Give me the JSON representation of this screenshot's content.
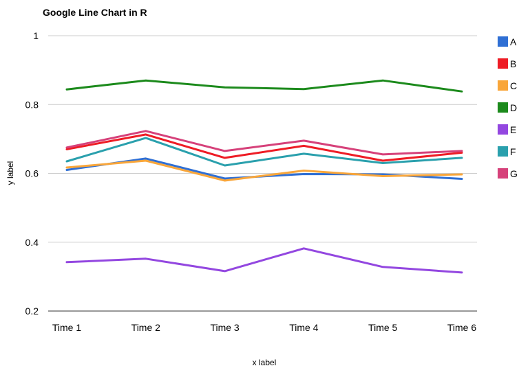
{
  "chart_data": {
    "type": "line",
    "title": "Google Line Chart in R",
    "xlabel": "x label",
    "ylabel": "y label",
    "categories": [
      "Time 1",
      "Time 2",
      "Time 3",
      "Time 4",
      "Time 5",
      "Time 6"
    ],
    "ylim": [
      0.2,
      1
    ],
    "yticks": [
      0.2,
      0.4,
      0.6,
      0.8,
      1
    ],
    "ytick_labels": [
      "0.2",
      "0.4",
      "0.6",
      "0.8",
      "1"
    ],
    "grid": true,
    "legend_position": "right",
    "series": [
      {
        "name": "A",
        "color": "#2f6fd4",
        "values": [
          0.61,
          0.643,
          0.585,
          0.598,
          0.597,
          0.584
        ]
      },
      {
        "name": "B",
        "color": "#ee1c25",
        "values": [
          0.67,
          0.713,
          0.645,
          0.68,
          0.637,
          0.66
        ]
      },
      {
        "name": "C",
        "color": "#f9a63a",
        "values": [
          0.617,
          0.637,
          0.579,
          0.608,
          0.592,
          0.597
        ]
      },
      {
        "name": "D",
        "color": "#1c8a1c",
        "values": [
          0.844,
          0.87,
          0.85,
          0.845,
          0.87,
          0.838
        ]
      },
      {
        "name": "E",
        "color": "#9347e0",
        "values": [
          0.342,
          0.352,
          0.316,
          0.382,
          0.328,
          0.312
        ]
      },
      {
        "name": "F",
        "color": "#2aa0ad",
        "values": [
          0.635,
          0.703,
          0.623,
          0.657,
          0.63,
          0.645
        ]
      },
      {
        "name": "G",
        "color": "#d6417a",
        "values": [
          0.675,
          0.723,
          0.665,
          0.695,
          0.655,
          0.665
        ]
      }
    ]
  }
}
